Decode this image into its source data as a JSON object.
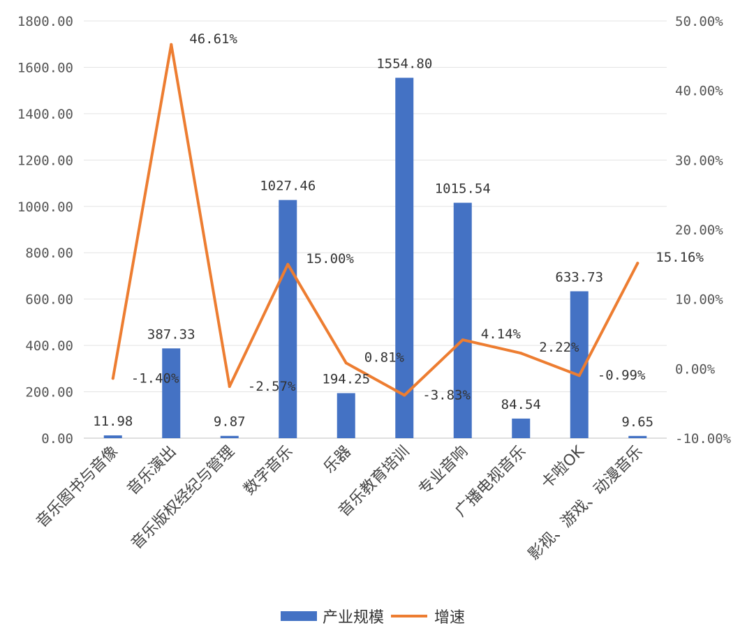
{
  "chart_data": {
    "type": "bar",
    "categories": [
      "音乐图书与音像",
      "音乐演出",
      "音乐版权经纪与管理",
      "数字音乐",
      "乐器",
      "音乐教育培训",
      "专业音响",
      "广播电视音乐",
      "卡啦OK",
      "影视、游戏、动漫音乐"
    ],
    "series": [
      {
        "name": "产业规模",
        "type": "bar",
        "axis": "left",
        "color": "#4472C4",
        "values": [
          11.98,
          387.33,
          9.87,
          1027.46,
          194.25,
          1554.8,
          1015.54,
          84.54,
          633.73,
          9.65
        ],
        "labels": [
          "11.98",
          "387.33",
          "9.87",
          "1027.46",
          "194.25",
          "1554.80",
          "1015.54",
          "84.54",
          "633.73",
          "9.65"
        ]
      },
      {
        "name": "增速",
        "type": "line",
        "axis": "right",
        "color": "#ED7D31",
        "values": [
          -1.4,
          46.61,
          -2.57,
          15.0,
          0.81,
          -3.83,
          4.14,
          2.22,
          -0.99,
          15.16
        ],
        "labels": [
          "-1.40%",
          "46.61%",
          "-2.57%",
          "15.00%",
          "0.81%",
          "-3.83%",
          "4.14%",
          "2.22%",
          "-0.99%",
          "15.16%"
        ]
      }
    ],
    "y_left": {
      "ylim": [
        0,
        1800
      ],
      "ticks": [
        0,
        200,
        400,
        600,
        800,
        1000,
        1200,
        1400,
        1600,
        1800
      ],
      "tick_labels": [
        "0.00",
        "200.00",
        "400.00",
        "600.00",
        "800.00",
        "1000.00",
        "1200.00",
        "1400.00",
        "1600.00",
        "1800.00"
      ]
    },
    "y_right": {
      "ylim": [
        -10,
        50
      ],
      "ticks": [
        -10,
        0,
        10,
        20,
        30,
        40,
        50
      ],
      "tick_labels": [
        "-10.00%",
        "0.00%",
        "10.00%",
        "20.00%",
        "30.00%",
        "40.00%",
        "50.00%"
      ]
    },
    "grid": true,
    "legend": {
      "position": "bottom",
      "entries": [
        "产业规模",
        "增速"
      ]
    },
    "title": "",
    "xlabel": "",
    "ylabel": ""
  }
}
